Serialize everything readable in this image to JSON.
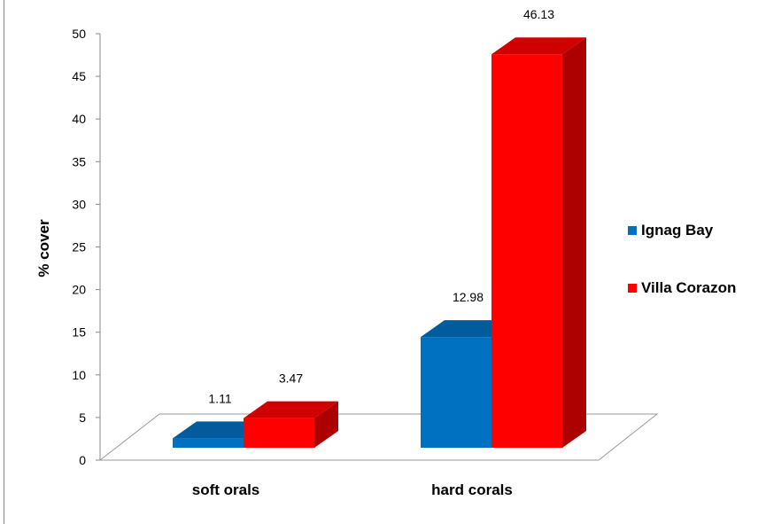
{
  "chart_data": {
    "type": "bar",
    "title": "",
    "xlabel": "",
    "ylabel": "% cover",
    "ylim": [
      0,
      50
    ],
    "yticks": [
      0,
      5,
      10,
      15,
      20,
      25,
      30,
      35,
      40,
      45,
      50
    ],
    "categories": [
      "soft orals",
      "hard corals"
    ],
    "series": [
      {
        "name": "Ignag Bay",
        "values": [
          1.11,
          12.98
        ],
        "labels": [
          "1.11",
          "12.98"
        ],
        "color": "#0070C0"
      },
      {
        "name": "Villa Corazon",
        "values": [
          3.47,
          46.13
        ],
        "labels": [
          "3.47",
          "46.13"
        ],
        "color": "#FF0000"
      }
    ],
    "legend": "right",
    "grid": false,
    "style": "3d-column"
  }
}
